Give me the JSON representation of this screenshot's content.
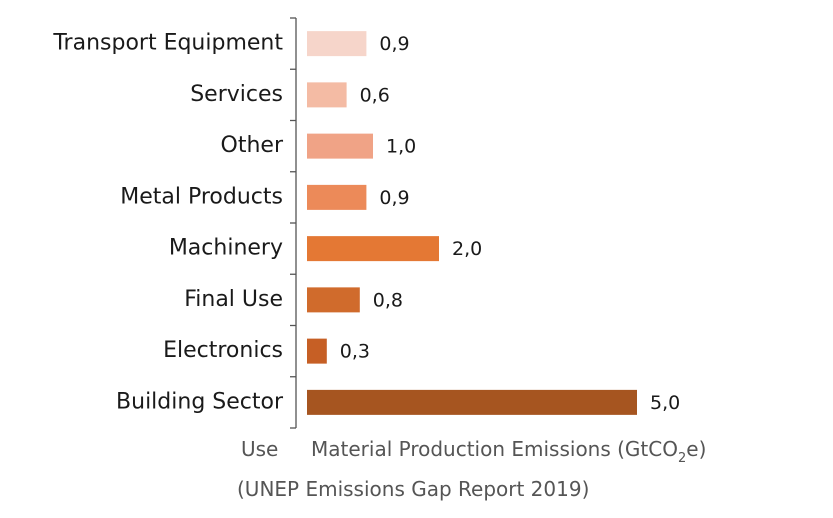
{
  "chart_data": {
    "type": "bar",
    "orientation": "horizontal",
    "categories": [
      "Transport Equipment",
      "Services",
      "Other",
      "Metal Products",
      "Machinery",
      "Final Use",
      "Electronics",
      "Building Sector"
    ],
    "values": [
      0.9,
      0.6,
      1.0,
      0.9,
      2.0,
      0.8,
      0.3,
      5.0
    ],
    "value_labels": [
      "0,9",
      "0,6",
      "1,0",
      "0,9",
      "2,0",
      "0,8",
      "0,3",
      "5,0"
    ],
    "colors": [
      "#f6d5ca",
      "#f4bba4",
      "#f0a386",
      "#ec8a59",
      "#e47834",
      "#d06b2c",
      "#c65f25",
      "#a65520"
    ],
    "ylabel": "Use",
    "xlabel_main": "Material Production Emissions (GtCO",
    "xlabel_sub": "2",
    "xlabel_end": "e)",
    "source": "(UNEP Emissions Gap Report 2019)",
    "xlim": [
      0,
      5.0
    ],
    "grid": false,
    "legend": "none"
  }
}
